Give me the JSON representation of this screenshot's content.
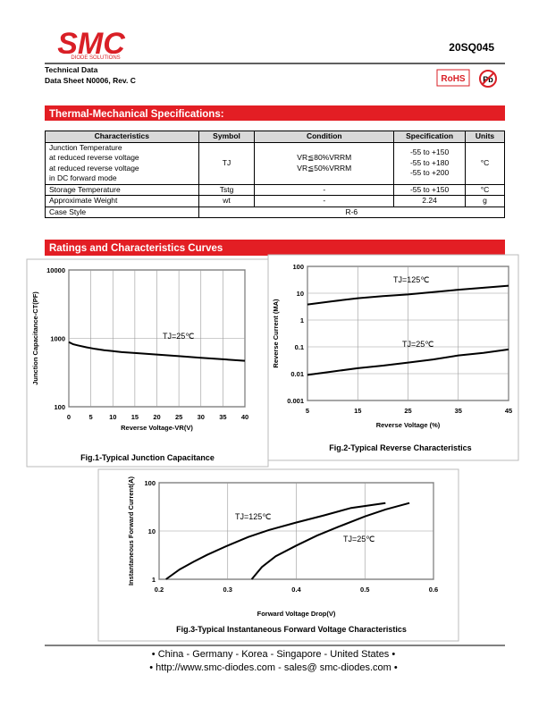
{
  "header": {
    "logo": "SMC",
    "logo_sub": "DIODE SOLUTIONS",
    "part_number": "20SQ045",
    "doc_lines": [
      "Technical Data",
      "Data Sheet N0006, Rev. C"
    ],
    "rohs": "RoHS",
    "pb": "Pb"
  },
  "sections": [
    "Thermal-Mechanical Specifications:",
    "Ratings and Characteristics Curves"
  ],
  "table": {
    "header": [
      "Characteristics",
      "Symbol",
      "Condition",
      "Specification",
      "Units"
    ],
    "rows": [
      [
        [
          "Junction Temperature",
          "at reduced reverse voltage",
          "at reduced reverse voltage",
          "in DC forward mode"
        ],
        [
          "TJ"
        ],
        [
          "VR≦80%VRRM",
          "VR≦50%VRRM"
        ],
        [
          "-55 to +150",
          "-55 to +180",
          "-55 to +200"
        ],
        [
          "°C"
        ]
      ],
      [
        [
          "Storage Temperature"
        ],
        [
          "Tstg"
        ],
        [
          "-"
        ],
        [
          "-55 to +150"
        ],
        [
          "°C"
        ]
      ],
      [
        [
          "Approximate Weight"
        ],
        [
          "wt"
        ],
        [
          "-"
        ],
        [
          "2.24"
        ],
        [
          "g"
        ]
      ],
      [
        [
          "Case Style"
        ],
        [
          "R-6"
        ]
      ]
    ]
  },
  "chart_data": [
    {
      "type": "line",
      "title": "Fig.1-Typical Junction Capacitance",
      "x_label": "Reverse Voltage-VR(V)",
      "y_label": "Junction Capacitance-CT(PF)",
      "log_y": true,
      "grid": true,
      "xlim": [
        0,
        40
      ],
      "xticks": [
        0,
        5,
        10,
        15,
        20,
        25,
        30,
        35,
        40
      ],
      "ylim": [
        100,
        10000
      ],
      "yticks": [
        100,
        1000,
        10000
      ],
      "series": [
        {
          "name": "TJ=25℃",
          "color": "#000000",
          "x": [
            0,
            1,
            2,
            4,
            6,
            8,
            10,
            12,
            15,
            20,
            25,
            30,
            35,
            40
          ],
          "values": [
            880,
            820,
            790,
            740,
            700,
            670,
            650,
            630,
            610,
            580,
            550,
            520,
            495,
            470
          ]
        }
      ]
    },
    {
      "type": "line",
      "title": "Fig.2-Typical Reverse Characteristics",
      "x_label": "Reverse Voltage (%)",
      "y_label": "Reverse Current (MA)",
      "log_y": true,
      "grid": true,
      "xlim": [
        5,
        45
      ],
      "xticks": [
        5,
        15,
        25,
        35,
        45
      ],
      "ylim": [
        0.001,
        100
      ],
      "yticks": [
        0.001,
        0.01,
        0.1,
        1,
        10,
        100
      ],
      "series": [
        {
          "name": "TJ=125℃",
          "color": "#000000",
          "x": [
            5,
            10,
            15,
            20,
            25,
            30,
            35,
            40,
            45
          ],
          "values": [
            3.8,
            5,
            6.5,
            7.8,
            9,
            11,
            13.5,
            16,
            19
          ]
        },
        {
          "name": "TJ=25℃",
          "color": "#000000",
          "x": [
            5,
            10,
            15,
            20,
            25,
            30,
            35,
            40,
            45
          ],
          "values": [
            0.009,
            0.012,
            0.016,
            0.02,
            0.026,
            0.034,
            0.048,
            0.06,
            0.08
          ]
        }
      ]
    },
    {
      "type": "line",
      "title": "Fig.3-Typical Instantaneous Forward Voltage Characteristics",
      "x_label": "Forward Voltage Drop(V)",
      "y_label": "Instantaneous Forward Current(A)",
      "log_y": true,
      "grid": true,
      "xlim": [
        0.2,
        0.6
      ],
      "xticks": [
        0.2,
        0.3,
        0.4,
        0.5,
        0.6
      ],
      "ylim": [
        1,
        100
      ],
      "yticks": [
        1,
        10,
        100
      ],
      "series": [
        {
          "name": "TJ=125℃",
          "color": "#000000",
          "x": [
            0.21,
            0.23,
            0.25,
            0.27,
            0.3,
            0.33,
            0.36,
            0.4,
            0.44,
            0.48,
            0.53
          ],
          "values": [
            1,
            1.6,
            2.3,
            3.2,
            5,
            7.5,
            10.5,
            15,
            21,
            30,
            38
          ]
        },
        {
          "name": "TJ=25℃",
          "color": "#000000",
          "x": [
            0.335,
            0.35,
            0.37,
            0.4,
            0.43,
            0.46,
            0.5,
            0.53,
            0.565
          ],
          "values": [
            1,
            1.8,
            3,
            5,
            8,
            12,
            20,
            28,
            38
          ]
        }
      ]
    }
  ],
  "footer": [
    "• China  -  Germany  -  Korea  -  Singapore  -  United States •",
    "• http://www.smc-diodes.com  -  sales@ smc-diodes.com •"
  ]
}
